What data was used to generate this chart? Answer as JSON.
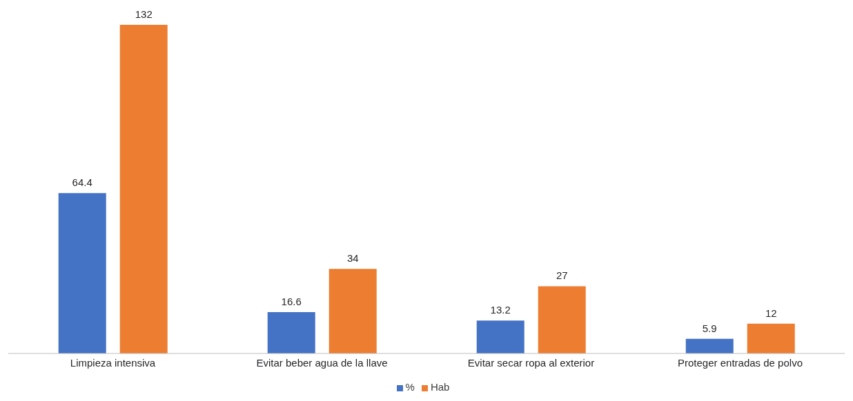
{
  "chart_data": {
    "type": "bar",
    "categories": [
      "Limpieza intensiva",
      "Evitar beber agua de la llave",
      "Evitar secar ropa al exterior",
      "Proteger entradas de polvo"
    ],
    "series": [
      {
        "name": "%",
        "color": "#4472c4",
        "values": [
          64.4,
          16.6,
          13.2,
          5.9
        ]
      },
      {
        "name": "Hab",
        "color": "#ed7d31",
        "values": [
          132,
          34,
          27,
          12
        ]
      }
    ],
    "data_labels": true,
    "legend": "bottom",
    "grid": false
  }
}
